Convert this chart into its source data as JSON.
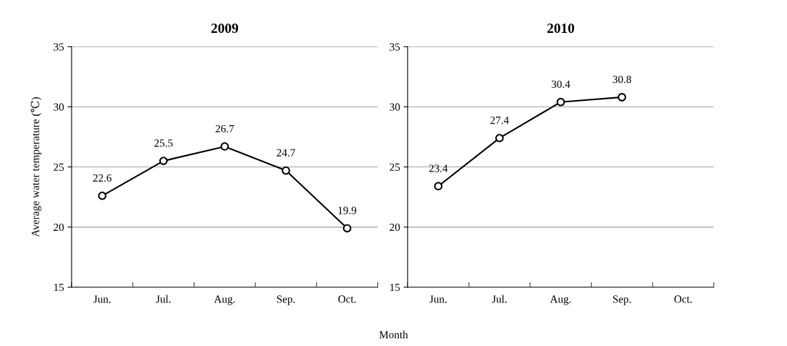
{
  "chart_data": [
    {
      "type": "line",
      "title": "2009",
      "ylabel": "Average water temperature (℃)",
      "xlabel": "Month",
      "categories": [
        "Jun.",
        "Jul.",
        "Aug.",
        "Sep.",
        "Oct."
      ],
      "series": [
        {
          "color": "#000000",
          "values": [
            22.6,
            25.5,
            26.7,
            24.7,
            19.9
          ]
        }
      ],
      "ylim": [
        15,
        35
      ],
      "yticks": [
        15,
        20,
        25,
        30,
        35
      ],
      "grid": "y",
      "marker": "circle",
      "line_style": "solid",
      "data_labels": true
    },
    {
      "type": "line",
      "title": "2010",
      "categories": [
        "Jun.",
        "Jul.",
        "Aug.",
        "Sep.",
        "Oct."
      ],
      "series": [
        {
          "color": "#000000",
          "values": [
            23.4,
            27.4,
            30.4,
            30.8,
            null
          ]
        }
      ],
      "ylim": [
        15,
        35
      ],
      "yticks": [
        15,
        20,
        25,
        30,
        35
      ],
      "grid": "y",
      "marker": "circle",
      "line_style": "solid",
      "data_labels": true
    }
  ]
}
